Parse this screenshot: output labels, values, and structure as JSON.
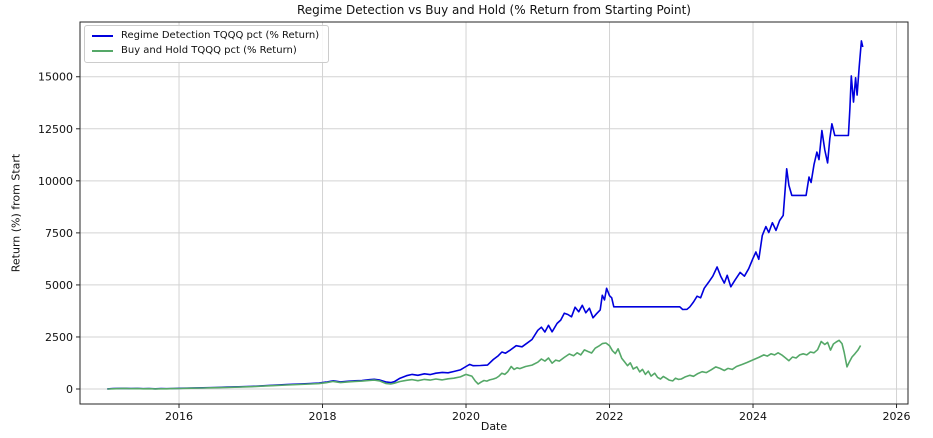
{
  "figure": {
    "title": "Regime Detection vs Buy and Hold (% Return from Starting Point)",
    "xlabel": "Date",
    "ylabel": "Return (%) from Start"
  },
  "colors": {
    "regime_line": "#0000dd",
    "buyhold_line": "#55a868",
    "grid": "#d3d3d3",
    "frame": "#262626",
    "background": "#ffffff"
  },
  "chart_data": {
    "type": "line",
    "title": "Regime Detection vs Buy and Hold (% Return from Starting Point)",
    "xlabel": "Date",
    "ylabel": "Return (%) from Start",
    "grid": true,
    "legend_position": "upper-left",
    "x_ticks": [
      2016,
      2018,
      2020,
      2022,
      2024,
      2026
    ],
    "y_ticks": [
      0,
      2500,
      5000,
      7500,
      10000,
      12500,
      15000
    ],
    "xlim": [
      2014.62,
      2026.16
    ],
    "ylim": [
      -720,
      17630
    ],
    "series": [
      {
        "name": "Regime Detection TQQQ pct (% Return)",
        "color": "#0000dd",
        "points": [
          [
            2015.0,
            5
          ],
          [
            2015.08,
            18
          ],
          [
            2015.17,
            28
          ],
          [
            2015.25,
            35
          ],
          [
            2015.33,
            22
          ],
          [
            2015.42,
            30
          ],
          [
            2015.5,
            15
          ],
          [
            2015.58,
            22
          ],
          [
            2015.67,
            12
          ],
          [
            2015.75,
            20
          ],
          [
            2015.83,
            15
          ],
          [
            2015.92,
            25
          ],
          [
            2016.0,
            35
          ],
          [
            2016.17,
            50
          ],
          [
            2016.33,
            60
          ],
          [
            2016.5,
            75
          ],
          [
            2016.67,
            90
          ],
          [
            2016.83,
            105
          ],
          [
            2017.0,
            125
          ],
          [
            2017.17,
            155
          ],
          [
            2017.33,
            185
          ],
          [
            2017.5,
            210
          ],
          [
            2017.67,
            235
          ],
          [
            2017.83,
            260
          ],
          [
            2017.95,
            285
          ],
          [
            2018.05,
            330
          ],
          [
            2018.15,
            395
          ],
          [
            2018.25,
            340
          ],
          [
            2018.35,
            370
          ],
          [
            2018.45,
            395
          ],
          [
            2018.55,
            410
          ],
          [
            2018.65,
            445
          ],
          [
            2018.72,
            465
          ],
          [
            2018.8,
            430
          ],
          [
            2018.88,
            340
          ],
          [
            2018.95,
            310
          ],
          [
            2019.0,
            350
          ],
          [
            2019.08,
            520
          ],
          [
            2019.17,
            640
          ],
          [
            2019.25,
            700
          ],
          [
            2019.33,
            660
          ],
          [
            2019.42,
            730
          ],
          [
            2019.5,
            690
          ],
          [
            2019.58,
            760
          ],
          [
            2019.67,
            800
          ],
          [
            2019.75,
            780
          ],
          [
            2019.83,
            840
          ],
          [
            2019.92,
            920
          ],
          [
            2020.0,
            1080
          ],
          [
            2020.05,
            1180
          ],
          [
            2020.1,
            1120
          ],
          [
            2020.2,
            1130
          ],
          [
            2020.3,
            1150
          ],
          [
            2020.38,
            1420
          ],
          [
            2020.45,
            1600
          ],
          [
            2020.5,
            1780
          ],
          [
            2020.55,
            1720
          ],
          [
            2020.62,
            1880
          ],
          [
            2020.7,
            2080
          ],
          [
            2020.78,
            2030
          ],
          [
            2020.85,
            2200
          ],
          [
            2020.92,
            2380
          ],
          [
            2021.0,
            2820
          ],
          [
            2021.05,
            2970
          ],
          [
            2021.1,
            2740
          ],
          [
            2021.15,
            3060
          ],
          [
            2021.2,
            2750
          ],
          [
            2021.27,
            3150
          ],
          [
            2021.32,
            3310
          ],
          [
            2021.37,
            3640
          ],
          [
            2021.42,
            3580
          ],
          [
            2021.47,
            3470
          ],
          [
            2021.52,
            3930
          ],
          [
            2021.57,
            3710
          ],
          [
            2021.62,
            4020
          ],
          [
            2021.67,
            3660
          ],
          [
            2021.72,
            3880
          ],
          [
            2021.77,
            3420
          ],
          [
            2021.82,
            3620
          ],
          [
            2021.87,
            3800
          ],
          [
            2021.9,
            4500
          ],
          [
            2021.93,
            4280
          ],
          [
            2021.96,
            4840
          ],
          [
            2022.0,
            4480
          ],
          [
            2022.03,
            4380
          ],
          [
            2022.06,
            3950
          ],
          [
            2022.98,
            3950
          ],
          [
            2023.02,
            3820
          ],
          [
            2023.08,
            3830
          ],
          [
            2023.12,
            3950
          ],
          [
            2023.17,
            4180
          ],
          [
            2023.22,
            4460
          ],
          [
            2023.27,
            4380
          ],
          [
            2023.32,
            4840
          ],
          [
            2023.38,
            5120
          ],
          [
            2023.44,
            5420
          ],
          [
            2023.5,
            5860
          ],
          [
            2023.55,
            5420
          ],
          [
            2023.6,
            5090
          ],
          [
            2023.64,
            5460
          ],
          [
            2023.69,
            4910
          ],
          [
            2023.75,
            5240
          ],
          [
            2023.82,
            5600
          ],
          [
            2023.88,
            5420
          ],
          [
            2023.94,
            5780
          ],
          [
            2024.0,
            6280
          ],
          [
            2024.04,
            6580
          ],
          [
            2024.08,
            6230
          ],
          [
            2024.13,
            7380
          ],
          [
            2024.18,
            7800
          ],
          [
            2024.22,
            7520
          ],
          [
            2024.27,
            7990
          ],
          [
            2024.32,
            7620
          ],
          [
            2024.37,
            8090
          ],
          [
            2024.42,
            8340
          ],
          [
            2024.47,
            10580
          ],
          [
            2024.5,
            9780
          ],
          [
            2024.54,
            9300
          ],
          [
            2024.74,
            9300
          ],
          [
            2024.78,
            10180
          ],
          [
            2024.81,
            9920
          ],
          [
            2024.85,
            10780
          ],
          [
            2024.89,
            11380
          ],
          [
            2024.92,
            11020
          ],
          [
            2024.96,
            12420
          ],
          [
            2025.0,
            11480
          ],
          [
            2025.04,
            10860
          ],
          [
            2025.07,
            12020
          ],
          [
            2025.1,
            12740
          ],
          [
            2025.14,
            12180
          ],
          [
            2025.33,
            12180
          ],
          [
            2025.35,
            13480
          ],
          [
            2025.37,
            15040
          ],
          [
            2025.4,
            13780
          ],
          [
            2025.43,
            14950
          ],
          [
            2025.45,
            14120
          ],
          [
            2025.48,
            15480
          ],
          [
            2025.51,
            16720
          ],
          [
            2025.53,
            16430
          ]
        ]
      },
      {
        "name": "Buy and Hold TQQQ pct (% Return)",
        "color": "#55a868",
        "points": [
          [
            2015.0,
            0
          ],
          [
            2015.08,
            12
          ],
          [
            2015.17,
            20
          ],
          [
            2015.25,
            28
          ],
          [
            2015.33,
            15
          ],
          [
            2015.42,
            22
          ],
          [
            2015.5,
            8
          ],
          [
            2015.58,
            15
          ],
          [
            2015.67,
            5
          ],
          [
            2015.75,
            12
          ],
          [
            2015.83,
            8
          ],
          [
            2015.92,
            18
          ],
          [
            2016.0,
            25
          ],
          [
            2016.17,
            38
          ],
          [
            2016.33,
            48
          ],
          [
            2016.5,
            62
          ],
          [
            2016.67,
            78
          ],
          [
            2016.83,
            92
          ],
          [
            2017.0,
            110
          ],
          [
            2017.17,
            138
          ],
          [
            2017.33,
            165
          ],
          [
            2017.5,
            192
          ],
          [
            2017.67,
            215
          ],
          [
            2017.83,
            240
          ],
          [
            2017.95,
            262
          ],
          [
            2018.05,
            305
          ],
          [
            2018.15,
            365
          ],
          [
            2018.25,
            310
          ],
          [
            2018.35,
            340
          ],
          [
            2018.45,
            365
          ],
          [
            2018.55,
            380
          ],
          [
            2018.65,
            410
          ],
          [
            2018.72,
            430
          ],
          [
            2018.8,
            385
          ],
          [
            2018.88,
            270
          ],
          [
            2018.95,
            240
          ],
          [
            2019.0,
            280
          ],
          [
            2019.08,
            360
          ],
          [
            2019.17,
            420
          ],
          [
            2019.25,
            450
          ],
          [
            2019.33,
            400
          ],
          [
            2019.42,
            460
          ],
          [
            2019.5,
            430
          ],
          [
            2019.58,
            480
          ],
          [
            2019.67,
            440
          ],
          [
            2019.75,
            490
          ],
          [
            2019.83,
            520
          ],
          [
            2019.92,
            580
          ],
          [
            2020.0,
            700
          ],
          [
            2020.04,
            660
          ],
          [
            2020.08,
            620
          ],
          [
            2020.13,
            380
          ],
          [
            2020.17,
            240
          ],
          [
            2020.21,
            330
          ],
          [
            2020.25,
            410
          ],
          [
            2020.29,
            380
          ],
          [
            2020.33,
            440
          ],
          [
            2020.38,
            480
          ],
          [
            2020.42,
            530
          ],
          [
            2020.46,
            620
          ],
          [
            2020.5,
            760
          ],
          [
            2020.54,
            700
          ],
          [
            2020.58,
            820
          ],
          [
            2020.63,
            1080
          ],
          [
            2020.67,
            940
          ],
          [
            2020.71,
            1020
          ],
          [
            2020.75,
            980
          ],
          [
            2020.83,
            1080
          ],
          [
            2020.92,
            1150
          ],
          [
            2021.0,
            1290
          ],
          [
            2021.05,
            1440
          ],
          [
            2021.1,
            1340
          ],
          [
            2021.15,
            1490
          ],
          [
            2021.2,
            1240
          ],
          [
            2021.25,
            1390
          ],
          [
            2021.3,
            1340
          ],
          [
            2021.37,
            1520
          ],
          [
            2021.44,
            1680
          ],
          [
            2021.5,
            1600
          ],
          [
            2021.55,
            1740
          ],
          [
            2021.6,
            1640
          ],
          [
            2021.65,
            1880
          ],
          [
            2021.7,
            1800
          ],
          [
            2021.75,
            1730
          ],
          [
            2021.8,
            1960
          ],
          [
            2021.85,
            2060
          ],
          [
            2021.9,
            2180
          ],
          [
            2021.95,
            2210
          ],
          [
            2022.0,
            2080
          ],
          [
            2022.04,
            1840
          ],
          [
            2022.08,
            1700
          ],
          [
            2022.12,
            1930
          ],
          [
            2022.17,
            1480
          ],
          [
            2022.21,
            1300
          ],
          [
            2022.25,
            1120
          ],
          [
            2022.29,
            1260
          ],
          [
            2022.33,
            960
          ],
          [
            2022.38,
            1060
          ],
          [
            2022.42,
            820
          ],
          [
            2022.46,
            940
          ],
          [
            2022.5,
            700
          ],
          [
            2022.54,
            860
          ],
          [
            2022.58,
            620
          ],
          [
            2022.63,
            760
          ],
          [
            2022.67,
            560
          ],
          [
            2022.71,
            480
          ],
          [
            2022.75,
            600
          ],
          [
            2022.79,
            520
          ],
          [
            2022.83,
            430
          ],
          [
            2022.88,
            390
          ],
          [
            2022.92,
            520
          ],
          [
            2022.96,
            460
          ],
          [
            2023.0,
            480
          ],
          [
            2023.06,
            590
          ],
          [
            2023.12,
            660
          ],
          [
            2023.17,
            610
          ],
          [
            2023.23,
            740
          ],
          [
            2023.29,
            830
          ],
          [
            2023.35,
            790
          ],
          [
            2023.42,
            930
          ],
          [
            2023.48,
            1060
          ],
          [
            2023.54,
            990
          ],
          [
            2023.6,
            890
          ],
          [
            2023.65,
            990
          ],
          [
            2023.71,
            940
          ],
          [
            2023.77,
            1080
          ],
          [
            2023.85,
            1180
          ],
          [
            2023.92,
            1280
          ],
          [
            2024.0,
            1400
          ],
          [
            2024.08,
            1520
          ],
          [
            2024.15,
            1640
          ],
          [
            2024.2,
            1580
          ],
          [
            2024.25,
            1690
          ],
          [
            2024.3,
            1640
          ],
          [
            2024.35,
            1740
          ],
          [
            2024.4,
            1640
          ],
          [
            2024.45,
            1500
          ],
          [
            2024.5,
            1360
          ],
          [
            2024.55,
            1540
          ],
          [
            2024.6,
            1490
          ],
          [
            2024.65,
            1640
          ],
          [
            2024.7,
            1690
          ],
          [
            2024.75,
            1640
          ],
          [
            2024.8,
            1780
          ],
          [
            2024.85,
            1740
          ],
          [
            2024.9,
            1890
          ],
          [
            2024.95,
            2280
          ],
          [
            2025.0,
            2140
          ],
          [
            2025.04,
            2240
          ],
          [
            2025.08,
            1870
          ],
          [
            2025.12,
            2160
          ],
          [
            2025.16,
            2260
          ],
          [
            2025.2,
            2340
          ],
          [
            2025.24,
            2180
          ],
          [
            2025.27,
            1780
          ],
          [
            2025.31,
            1060
          ],
          [
            2025.34,
            1290
          ],
          [
            2025.38,
            1540
          ],
          [
            2025.42,
            1690
          ],
          [
            2025.46,
            1860
          ],
          [
            2025.5,
            2090
          ]
        ]
      }
    ]
  }
}
